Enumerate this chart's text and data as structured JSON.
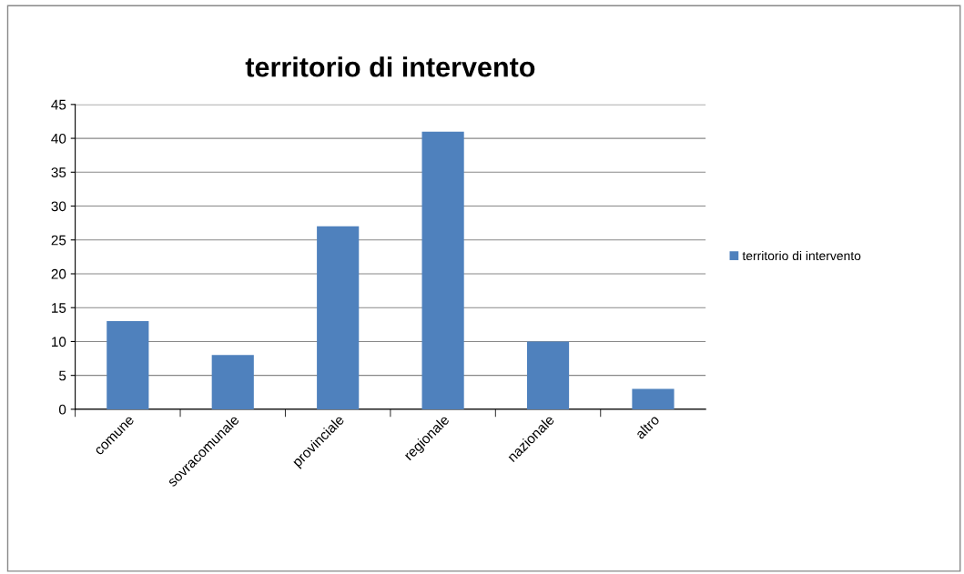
{
  "chart_data": {
    "type": "bar",
    "title": "territorio di intervento",
    "categories": [
      "comune",
      "sovracomunale",
      "provinciale",
      "regionale",
      "nazionale",
      "altro"
    ],
    "series": [
      {
        "name": "territorio di intervento",
        "color": "#4f81bd",
        "values": [
          13,
          8,
          27,
          41,
          10,
          3
        ]
      }
    ],
    "ylim": [
      0,
      45
    ],
    "yticks": [
      0,
      5,
      10,
      15,
      20,
      25,
      30,
      35,
      40,
      45
    ],
    "grid": "y",
    "legend": "right"
  }
}
